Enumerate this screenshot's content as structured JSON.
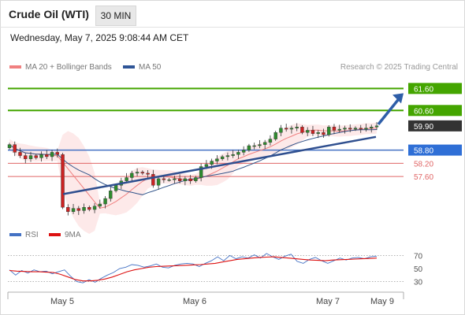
{
  "header": {
    "title": "Crude Oil (WTI)",
    "timeframe": "30 MIN",
    "datetime": "Wednesday, May 7, 2025 9:08:44 AM CET"
  },
  "credit": "Research © 2025 Trading Central",
  "legend_main": [
    {
      "label": "MA 20 + Bollinger Bands",
      "color": "#f08080"
    },
    {
      "label": "MA 50",
      "color": "#2f5597"
    }
  ],
  "legend_rsi": [
    {
      "label": "RSI",
      "color": "#4472c4"
    },
    {
      "label": "9MA",
      "color": "#dd1111"
    }
  ],
  "colors": {
    "candle_up": "#2e8b2e",
    "candle_down": "#cc2222",
    "resistance": "#44a500",
    "support_major": "#4472c4",
    "support_minor": "#e06666",
    "trendline": "#2f4f8f",
    "arrow": "#2e5ea8",
    "bollinger_fill": "#fde4e4",
    "ma50": "#33558a",
    "current": "#333333"
  },
  "chart_data": [
    {
      "type": "candlestick",
      "title": "Crude Oil (WTI)",
      "timeframe": "30 MIN",
      "x_tick_labels": [
        "May 5",
        "May 6",
        "May 7",
        "May 9"
      ],
      "y_range": [
        55.6,
        62.4
      ],
      "levels": [
        {
          "value": 61.6,
          "label": "61.60",
          "kind": "resistance"
        },
        {
          "value": 60.6,
          "label": "60.60",
          "kind": "resistance"
        },
        {
          "value": 59.9,
          "label": "59.90",
          "kind": "current"
        },
        {
          "value": 58.8,
          "label": "58.80",
          "kind": "support"
        },
        {
          "value": 58.2,
          "label": "58.20",
          "kind": "support"
        },
        {
          "value": 57.6,
          "label": "57.60",
          "kind": "support"
        }
      ],
      "price_path": [
        59.05,
        58.7,
        58.55,
        58.4,
        58.55,
        58.45,
        58.6,
        58.5,
        58.7,
        58.6,
        56.2,
        56.0,
        56.15,
        56.05,
        56.2,
        56.1,
        56.25,
        56.35,
        56.6,
        56.95,
        57.2,
        57.4,
        57.55,
        57.75,
        57.8,
        57.75,
        57.7,
        57.2,
        57.5,
        57.45,
        57.45,
        57.5,
        57.4,
        57.5,
        57.4,
        57.55,
        58.05,
        58.15,
        58.3,
        58.4,
        58.5,
        58.55,
        58.6,
        58.7,
        58.8,
        59.0,
        59.0,
        59.05,
        59.15,
        59.3,
        59.6,
        59.8,
        59.75,
        59.8,
        59.85,
        59.6,
        59.7,
        59.55,
        59.6,
        59.5,
        59.85,
        59.7,
        59.75,
        59.8,
        59.75,
        59.8,
        59.75,
        59.8,
        59.85,
        59.9
      ],
      "trendline": {
        "from": 56.8,
        "to": 59.4
      },
      "forecast_target": 61.6,
      "rsi": {
        "y_ticks": [
          70,
          50,
          30
        ],
        "y_range": [
          15,
          85
        ],
        "rsi_values": [
          48,
          40,
          47,
          43,
          48,
          45,
          46,
          42,
          45,
          48,
          38,
          30,
          28,
          33,
          29,
          35,
          40,
          44,
          50,
          52,
          56,
          55,
          52,
          54,
          57,
          52,
          51,
          55,
          57,
          58,
          57,
          53,
          58,
          62,
          68,
          62,
          70,
          65,
          68,
          66,
          71,
          66,
          73,
          68,
          64,
          69,
          72,
          61,
          58,
          64,
          67,
          62,
          58,
          62,
          66,
          63,
          66,
          67,
          65,
          68,
          69
        ],
        "ma_values": [
          47,
          46,
          45.5,
          45,
          45,
          44.5,
          44,
          41,
          37,
          33,
          31,
          31,
          32,
          34,
          37,
          41,
          45,
          48,
          50,
          52,
          53,
          53.5,
          54,
          54.5,
          55,
          55.5,
          56,
          57,
          58,
          60,
          62,
          64,
          65,
          66,
          67,
          67.5,
          68,
          67,
          66,
          65,
          64,
          63,
          62.5,
          62,
          63,
          63.5,
          64,
          64.5,
          65,
          65.5,
          66
        ]
      }
    }
  ]
}
